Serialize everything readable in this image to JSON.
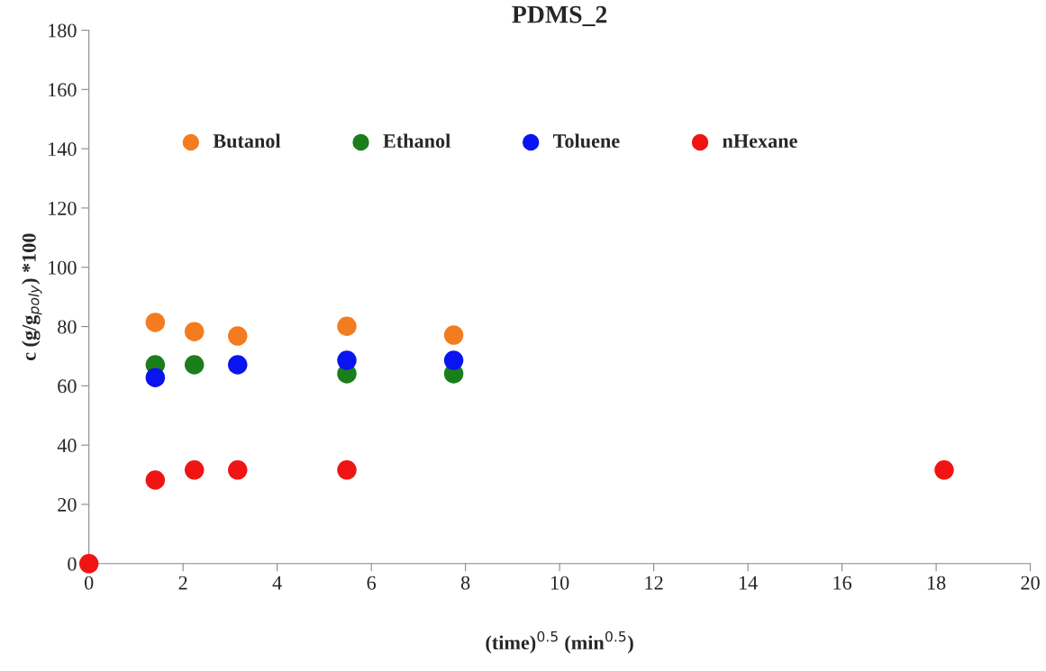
{
  "chart_data": {
    "type": "scatter",
    "title": "PDMS_2",
    "xlabel": "(time)$^{0.5}$ (min$^{0.5}$)",
    "ylabel": "c (g/g$_{poly}$) *100",
    "series": [
      {
        "name": "Butanol",
        "color": "#f47c20",
        "x": [
          1.41,
          2.24,
          3.16,
          5.48,
          7.75
        ],
        "values": [
          81.4,
          78.3,
          76.8,
          80.1,
          77.1
        ]
      },
      {
        "name": "Ethanol",
        "color": "#1a7f1a",
        "x": [
          1.41,
          2.24,
          5.48,
          7.75
        ],
        "values": [
          67.1,
          67.1,
          64.1,
          64.1
        ]
      },
      {
        "name": "Toluene",
        "color": "#0a14f0",
        "x": [
          1.41,
          3.16,
          5.48,
          7.75
        ],
        "values": [
          62.8,
          67.1,
          68.6,
          68.6
        ]
      },
      {
        "name": "nHexane",
        "color": "#f01414",
        "x": [
          0,
          1.41,
          2.24,
          3.16,
          5.48,
          18.17
        ],
        "values": [
          0,
          28.2,
          31.6,
          31.6,
          31.6,
          31.6
        ]
      }
    ],
    "xlim": [
      0,
      20
    ],
    "xticks": [
      0,
      2,
      4,
      6,
      8,
      10,
      12,
      14,
      16,
      18,
      20
    ],
    "ylim": [
      0,
      180
    ],
    "yticks": [
      0,
      20,
      40,
      60,
      80,
      100,
      120,
      140,
      160,
      180
    ],
    "marker": "circle",
    "grid": false,
    "legend": "top"
  }
}
